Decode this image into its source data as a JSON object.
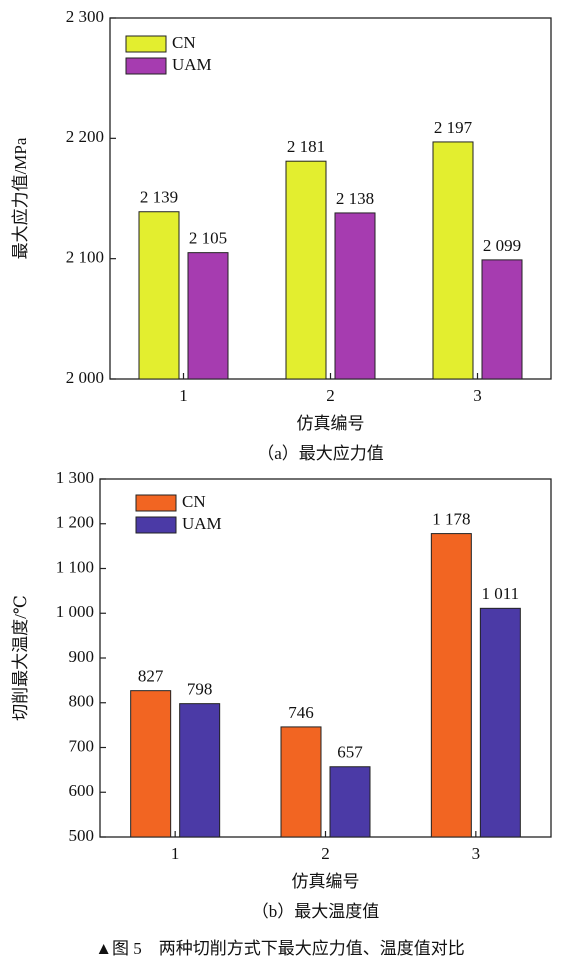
{
  "chart_data": [
    {
      "type": "bar",
      "ylabel": "最大应力值/MPa",
      "xlabel": "仿真编号",
      "subtitle": "（a）最大应力值",
      "categories": [
        "1",
        "2",
        "3"
      ],
      "series": [
        {
          "name": "CN",
          "color": "#e3ee2f",
          "values": [
            2139,
            2181,
            2197
          ],
          "value_labels": [
            "2 139",
            "2 181",
            "2 197"
          ]
        },
        {
          "name": "UAM",
          "color": "#a63cb0",
          "values": [
            2105,
            2138,
            2099
          ],
          "value_labels": [
            "2 105",
            "2 138",
            "2 099"
          ]
        }
      ],
      "ylim": [
        2000,
        2300
      ],
      "yticks": [
        {
          "value": 2000,
          "label": "2 000"
        },
        {
          "value": 2100,
          "label": "2 100"
        },
        {
          "value": 2200,
          "label": "2 200"
        },
        {
          "value": 2300,
          "label": "2 300"
        }
      ],
      "legend": "upper left"
    },
    {
      "type": "bar",
      "ylabel": "切削最大温度/℃",
      "xlabel": "仿真编号",
      "subtitle": "（b）最大温度值",
      "categories": [
        "1",
        "2",
        "3"
      ],
      "series": [
        {
          "name": "CN",
          "color": "#f26522",
          "values": [
            827,
            746,
            1178
          ],
          "value_labels": [
            "827",
            "746",
            "1 178"
          ]
        },
        {
          "name": "UAM",
          "color": "#4b3aa6",
          "values": [
            798,
            657,
            1011
          ],
          "value_labels": [
            "798",
            "657",
            "1 011"
          ]
        }
      ],
      "ylim": [
        500,
        1300
      ],
      "yticks": [
        500,
        600,
        700,
        800,
        900,
        {
          "value": 1000,
          "label": "1 000"
        },
        {
          "value": 1100,
          "label": "1 100"
        },
        {
          "value": 1200,
          "label": "1 200"
        },
        {
          "value": 1300,
          "label": "1 300"
        }
      ],
      "legend": "upper left"
    }
  ],
  "caption": "▲图 5　两种切削方式下最大应力值、温度值对比"
}
